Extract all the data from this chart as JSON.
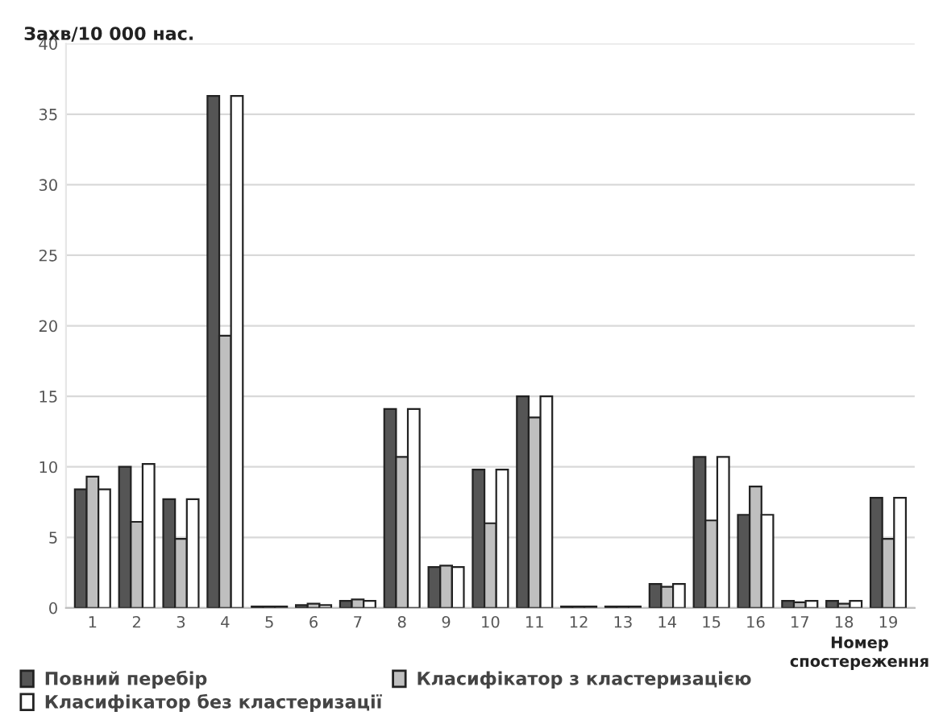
{
  "chart_data": {
    "type": "bar",
    "ylabel": "Захв/10 000 нас.",
    "xlabel": "Номер спостереження",
    "categories": [
      "1",
      "2",
      "3",
      "4",
      "5",
      "6",
      "7",
      "8",
      "9",
      "10",
      "11",
      "12",
      "13",
      "14",
      "15",
      "16",
      "17",
      "18",
      "19"
    ],
    "series": [
      {
        "name": "Повний перебір",
        "color": "#555555",
        "values": [
          8.4,
          10,
          7.7,
          36.3,
          0.1,
          0.2,
          0.5,
          14.1,
          2.9,
          9.8,
          15,
          0.1,
          0.1,
          1.7,
          10.7,
          6.6,
          0.5,
          0.5,
          7.8
        ]
      },
      {
        "name": "Класифікатор з кластеризацією",
        "color": "#bfbfbf",
        "values": [
          9.3,
          6.1,
          4.9,
          19.3,
          0.1,
          0.3,
          0.6,
          10.7,
          3.0,
          6.0,
          13.5,
          0.1,
          0.1,
          1.5,
          6.2,
          8.6,
          0.4,
          0.3,
          4.9
        ]
      },
      {
        "name": "Класифікатор без кластеризації",
        "color": "#ffffff",
        "values": [
          8.4,
          10.2,
          7.7,
          36.3,
          0.1,
          0.2,
          0.5,
          14.1,
          2.9,
          9.8,
          15,
          0.1,
          0.1,
          1.7,
          10.7,
          6.6,
          0.5,
          0.5,
          7.8
        ]
      }
    ],
    "ylim": [
      0,
      40
    ],
    "yticks": [
      0,
      5,
      10,
      15,
      20,
      25,
      30,
      35,
      40
    ],
    "grid": "y",
    "legend": "bottom left"
  }
}
